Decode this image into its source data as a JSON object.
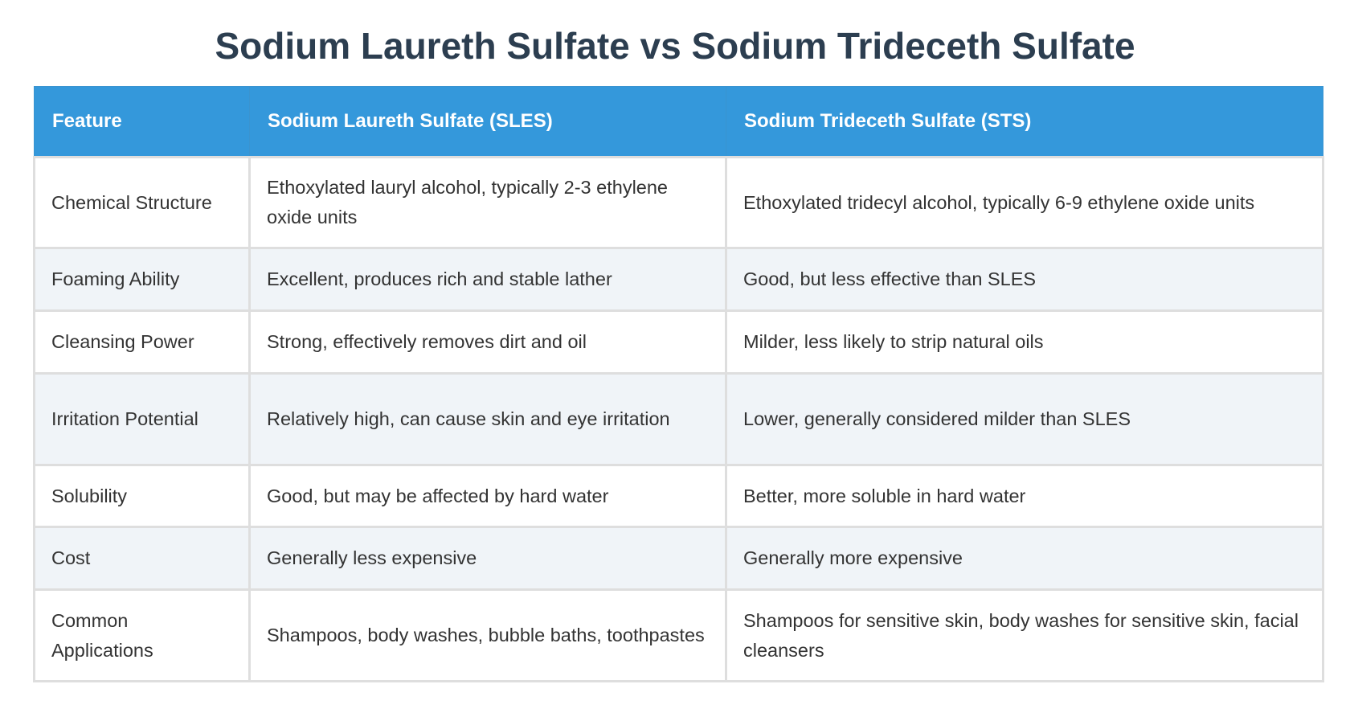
{
  "title": "Sodium Laureth Sulfate vs Sodium Trideceth Sulfate",
  "table": {
    "headers": [
      "Feature",
      "Sodium Laureth Sulfate (SLES)",
      "Sodium Trideceth Sulfate (STS)"
    ],
    "rows": [
      [
        "Chemical Structure",
        "Ethoxylated lauryl alcohol, typically 2-3 ethylene oxide units",
        "Ethoxylated tridecyl alcohol, typically 6-9 ethylene oxide units"
      ],
      [
        "Foaming Ability",
        "Excellent, produces rich and stable lather",
        "Good, but less effective than SLES"
      ],
      [
        "Cleansing Power",
        "Strong, effectively removes dirt and oil",
        "Milder, less likely to strip natural oils"
      ],
      [
        "Irritation Potential",
        "Relatively high, can cause skin and eye irritation",
        "Lower, generally considered milder than SLES"
      ],
      [
        "Solubility",
        "Good, but may be affected by hard water",
        "Better, more soluble in hard water"
      ],
      [
        "Cost",
        "Generally less expensive",
        "Generally more expensive"
      ],
      [
        "Common Applications",
        "Shampoos, body washes, bubble baths, toothpastes",
        "Shampoos for sensitive skin, body washes for sensitive skin, facial cleansers"
      ]
    ]
  },
  "colors": {
    "header_bg": "#3498db",
    "title": "#2c3e50",
    "alt_row": "#f0f4f8"
  }
}
